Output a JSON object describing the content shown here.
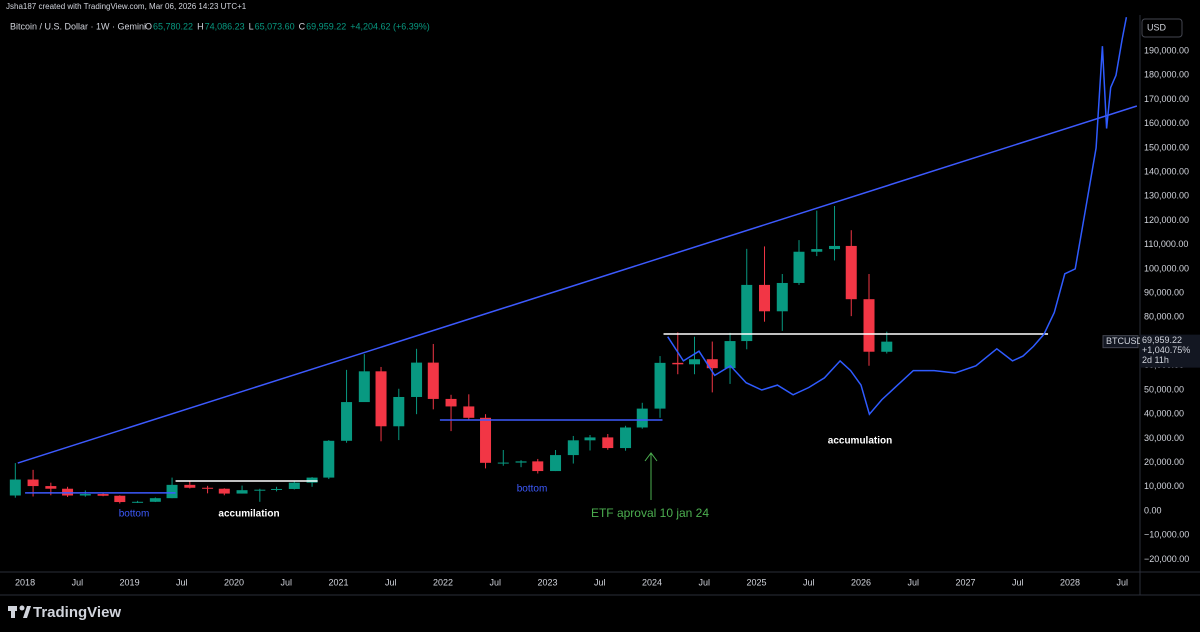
{
  "chart_data": {
    "type": "candlestick",
    "header": {
      "credit": "Jsha187 created with TradingView.com, Mar 06, 2026 14:23 UTC+1",
      "symbol": "Bitcoin / U.S. Dollar · 1W · Gemini",
      "ohlc_prefixes": [
        "O",
        "H",
        "L",
        "C"
      ],
      "ohlc_labels": [
        "65,780.22",
        "74,086.23",
        "65,073.60",
        "69,959.22"
      ],
      "change_label": "+4,204.62 (+6.39%)"
    },
    "currency": "USD",
    "symbol_tag": "BTCUSD",
    "last_price": 69959.22,
    "last_price_label": "69,959.22",
    "last_change_label": "+1,040.75%",
    "countdown_label": "2d 11h",
    "brand": "TradingView",
    "up_color": "#089981",
    "down_color": "#f23645",
    "grid": false,
    "x": [
      2017.83,
      2018.0,
      2018.17,
      2018.33,
      2018.5,
      2018.67,
      2018.83,
      2019.0,
      2019.17,
      2019.33,
      2019.5,
      2019.67,
      2019.83,
      2020.0,
      2020.17,
      2020.33,
      2020.5,
      2020.67,
      2020.83,
      2021.0,
      2021.17,
      2021.33,
      2021.5,
      2021.67,
      2021.83,
      2022.0,
      2022.17,
      2022.33,
      2022.5,
      2022.67,
      2022.83,
      2023.0,
      2023.17,
      2023.33,
      2023.5,
      2023.67,
      2023.83,
      2024.0,
      2024.17,
      2024.33,
      2024.5,
      2024.67,
      2024.83,
      2025.0,
      2025.17,
      2025.33,
      2025.5,
      2025.67,
      2025.83,
      2026.0,
      2026.17
    ],
    "ohlc": [
      [
        6400,
        19800,
        5500,
        13000
      ],
      [
        13000,
        17000,
        6000,
        10300
      ],
      [
        10300,
        11700,
        6500,
        9200
      ],
      [
        9200,
        10000,
        5800,
        6400
      ],
      [
        6400,
        8500,
        5900,
        7000
      ],
      [
        7000,
        7400,
        6100,
        6300
      ],
      [
        6300,
        6500,
        3100,
        3700
      ],
      [
        3700,
        4200,
        3300,
        3800
      ],
      [
        3800,
        5600,
        3700,
        5300
      ],
      [
        5300,
        13800,
        5300,
        10800
      ],
      [
        10800,
        12300,
        9300,
        9600
      ],
      [
        9600,
        10400,
        7300,
        9200
      ],
      [
        9200,
        9400,
        6500,
        7200
      ],
      [
        7200,
        10500,
        7200,
        8600
      ],
      [
        8600,
        9200,
        3800,
        8800
      ],
      [
        8800,
        10000,
        8100,
        9100
      ],
      [
        9100,
        12400,
        8900,
        11700
      ],
      [
        11700,
        14000,
        10000,
        13800
      ],
      [
        13800,
        29300,
        13200,
        29000
      ],
      [
        29000,
        58300,
        28200,
        45000
      ],
      [
        45000,
        64800,
        47000,
        57700
      ],
      [
        57700,
        59500,
        28800,
        35000
      ],
      [
        35000,
        50500,
        29300,
        47100
      ],
      [
        47100,
        67000,
        40000,
        61300
      ],
      [
        61300,
        69000,
        42000,
        46300
      ],
      [
        46300,
        48000,
        33000,
        43200
      ],
      [
        43200,
        48200,
        37700,
        38500
      ],
      [
        38500,
        40000,
        17600,
        19900
      ],
      [
        19900,
        25200,
        18700,
        20000
      ],
      [
        20000,
        21000,
        18100,
        20500
      ],
      [
        20500,
        21500,
        15500,
        16500
      ],
      [
        16500,
        25200,
        16500,
        23100
      ],
      [
        23100,
        31000,
        19600,
        29200
      ],
      [
        29200,
        31400,
        25000,
        30400
      ],
      [
        30400,
        31800,
        25300,
        26000
      ],
      [
        26000,
        35200,
        24900,
        34500
      ],
      [
        34500,
        44700,
        34000,
        42300
      ],
      [
        42300,
        64000,
        38500,
        61200
      ],
      [
        61200,
        73800,
        56500,
        60600
      ],
      [
        60600,
        72000,
        56500,
        62700
      ],
      [
        62700,
        70000,
        49000,
        59000
      ],
      [
        59000,
        73600,
        52500,
        70200
      ],
      [
        70200,
        108300,
        66800,
        93400
      ],
      [
        93400,
        109300,
        78200,
        82500
      ],
      [
        82500,
        97900,
        74400,
        94200
      ],
      [
        94200,
        111900,
        93400,
        107100
      ],
      [
        107100,
        124100,
        105300,
        108200
      ],
      [
        108200,
        126000,
        103500,
        109500
      ],
      [
        109500,
        116000,
        80500,
        87500
      ],
      [
        87500,
        97900,
        60000,
        65800
      ],
      [
        65780.22,
        74086.23,
        65073.6,
        69959.22
      ]
    ],
    "overlay": {
      "color": "#2f5bff",
      "x": [
        2024.15,
        2024.3,
        2024.45,
        2024.6,
        2024.75,
        2024.9,
        2025.05,
        2025.2,
        2025.35,
        2025.5,
        2025.65,
        2025.8,
        2025.9,
        2026.0,
        2026.08,
        2026.2,
        2026.35,
        2026.5,
        2026.7,
        2026.9,
        2027.1,
        2027.3,
        2027.45,
        2027.55,
        2027.65,
        2027.75,
        2027.85,
        2027.95,
        2028.05,
        2028.15,
        2028.25,
        2028.31,
        2028.35,
        2028.39,
        2028.44,
        2028.5,
        2028.54
      ],
      "values": [
        72000,
        62000,
        66000,
        56000,
        60000,
        53000,
        50000,
        52000,
        48000,
        51000,
        55000,
        62000,
        58000,
        52000,
        40000,
        46000,
        52000,
        58000,
        58000,
        57000,
        60000,
        67000,
        62000,
        64000,
        68000,
        73000,
        82000,
        98000,
        100000,
        125000,
        150000,
        192000,
        158000,
        175000,
        180000,
        195000,
        204000
      ]
    },
    "trendlines": [
      {
        "color": "#3d5afe",
        "x": [
          2017.93,
          2028.64
        ],
        "y": [
          19800,
          167300
        ]
      },
      {
        "color": "#3d5afe",
        "x": [
          2018.0,
          2019.44
        ],
        "y": [
          7500,
          7500
        ]
      },
      {
        "color": "#ffffff",
        "x": [
          2019.44,
          2020.8
        ],
        "y": [
          12400,
          12400
        ]
      },
      {
        "color": "#3d5afe",
        "x": [
          2021.97,
          2024.1
        ],
        "y": [
          37600,
          37600
        ]
      },
      {
        "color": "#ffffff",
        "x": [
          2024.11,
          2027.79
        ],
        "y": [
          73100,
          73100
        ]
      }
    ],
    "annotations": [
      {
        "text": "bottom",
        "color": "#3d5afe"
      },
      {
        "text": "accumilation",
        "color": "#ffffff"
      },
      {
        "text": "bottom",
        "color": "#3d5afe"
      },
      {
        "text": "ETF aproval 10 jan 24",
        "color": "#4caf50"
      },
      {
        "text": "accumulation",
        "color": "#ffffff"
      }
    ],
    "xlim": [
      2017.76,
      2028.67
    ],
    "ylim": [
      -25200,
      204900
    ],
    "xticks": [
      {
        "value": 2018,
        "label": "2018"
      },
      {
        "value": 2018.5,
        "label": "Jul"
      },
      {
        "value": 2019,
        "label": "2019"
      },
      {
        "value": 2019.5,
        "label": "Jul"
      },
      {
        "value": 2020,
        "label": "2020"
      },
      {
        "value": 2020.5,
        "label": "Jul"
      },
      {
        "value": 2021,
        "label": "2021"
      },
      {
        "value": 2021.5,
        "label": "Jul"
      },
      {
        "value": 2022,
        "label": "2022"
      },
      {
        "value": 2022.5,
        "label": "Jul"
      },
      {
        "value": 2023,
        "label": "2023"
      },
      {
        "value": 2023.5,
        "label": "Jul"
      },
      {
        "value": 2024,
        "label": "2024"
      },
      {
        "value": 2024.5,
        "label": "Jul"
      },
      {
        "value": 2025,
        "label": "2025"
      },
      {
        "value": 2025.5,
        "label": "Jul"
      },
      {
        "value": 2026,
        "label": "2026"
      },
      {
        "value": 2026.5,
        "label": "Jul"
      },
      {
        "value": 2027,
        "label": "2027"
      },
      {
        "value": 2027.5,
        "label": "Jul"
      },
      {
        "value": 2028,
        "label": "2028"
      },
      {
        "value": 2028.5,
        "label": "Jul"
      }
    ],
    "yticks": [
      {
        "value": 190000,
        "label": "190,000.00"
      },
      {
        "value": 180000,
        "label": "180,000.00"
      },
      {
        "value": 170000,
        "label": "170,000.00"
      },
      {
        "value": 160000,
        "label": "160,000.00"
      },
      {
        "value": 150000,
        "label": "150,000.00"
      },
      {
        "value": 140000,
        "label": "140,000.00"
      },
      {
        "value": 130000,
        "label": "130,000.00"
      },
      {
        "value": 120000,
        "label": "120,000.00"
      },
      {
        "value": 110000,
        "label": "110,000.00"
      },
      {
        "value": 100000,
        "label": "100,000.00"
      },
      {
        "value": 90000,
        "label": "90,000.00"
      },
      {
        "value": 80000,
        "label": "80,000.00"
      },
      {
        "value": 60000,
        "label": "60,000.00"
      },
      {
        "value": 50000,
        "label": "50,000.00"
      },
      {
        "value": 40000,
        "label": "40,000.00"
      },
      {
        "value": 30000,
        "label": "30,000.00"
      },
      {
        "value": 20000,
        "label": "20,000.00"
      },
      {
        "value": 10000,
        "label": "10,000.00"
      },
      {
        "value": 0,
        "label": "0.00"
      },
      {
        "value": -10000,
        "label": "−10,000.00"
      },
      {
        "value": -20000,
        "label": "−20,000.00"
      }
    ]
  }
}
